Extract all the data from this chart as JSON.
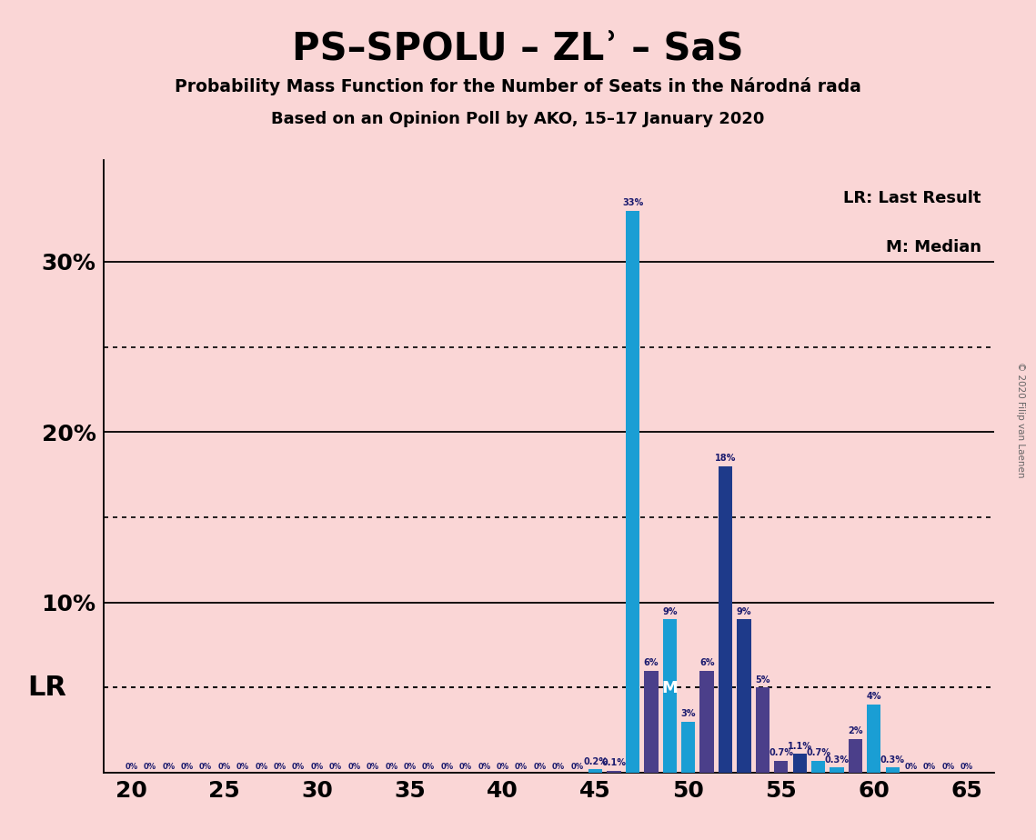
{
  "title": "PS–SPOLU – ZLʾ – SaS",
  "subtitle1": "Probability Mass Function for the Number of Seats in the Národná rada",
  "subtitle2": "Based on an Opinion Poll by AKO, 15–17 January 2020",
  "copyright": "© 2020 Filip van Laenen",
  "lr_label": "LR",
  "lr_last_result": "LR: Last Result",
  "m_median": "M: Median",
  "background_color": "#fad6d6",
  "seats": [
    20,
    21,
    22,
    23,
    24,
    25,
    26,
    27,
    28,
    29,
    30,
    31,
    32,
    33,
    34,
    35,
    36,
    37,
    38,
    39,
    40,
    41,
    42,
    43,
    44,
    45,
    46,
    47,
    48,
    49,
    50,
    51,
    52,
    53,
    54,
    55,
    56,
    57,
    58,
    59,
    60,
    61,
    62,
    63,
    64,
    65
  ],
  "values": [
    0.0,
    0.0,
    0.0,
    0.0,
    0.0,
    0.0,
    0.0,
    0.0,
    0.0,
    0.0,
    0.0,
    0.0,
    0.0,
    0.0,
    0.0,
    0.0,
    0.0,
    0.0,
    0.0,
    0.0,
    0.0,
    0.0,
    0.0,
    0.0,
    0.0,
    0.002,
    0.001,
    0.33,
    0.06,
    0.09,
    0.03,
    0.06,
    0.18,
    0.09,
    0.05,
    0.007,
    0.011,
    0.007,
    0.003,
    0.02,
    0.04,
    0.003,
    0.0,
    0.0,
    0.0,
    0.0
  ],
  "labels": [
    "0%",
    "0%",
    "0%",
    "0%",
    "0%",
    "0%",
    "0%",
    "0%",
    "0%",
    "0%",
    "0%",
    "0%",
    "0%",
    "0%",
    "0%",
    "0%",
    "0%",
    "0%",
    "0%",
    "0%",
    "0%",
    "0%",
    "0%",
    "0%",
    "0%",
    "0.2%",
    "0.1%",
    "33%",
    "6%",
    "9%",
    "3%",
    "6%",
    "18%",
    "9%",
    "5%",
    "0.7%",
    "1.1%",
    "0.7%",
    "0.3%",
    "2%",
    "4%",
    "0.3%",
    "0%",
    "0%",
    "0%",
    "0%"
  ],
  "colors": [
    "#1a9ed4",
    "#1a9ed4",
    "#1a9ed4",
    "#1a9ed4",
    "#1a9ed4",
    "#1a9ed4",
    "#1a9ed4",
    "#1a9ed4",
    "#1a9ed4",
    "#1a9ed4",
    "#1a9ed4",
    "#1a9ed4",
    "#1a9ed4",
    "#1a9ed4",
    "#1a9ed4",
    "#1a9ed4",
    "#1a9ed4",
    "#1a9ed4",
    "#1a9ed4",
    "#1a9ed4",
    "#1a9ed4",
    "#1a9ed4",
    "#1a9ed4",
    "#1a9ed4",
    "#1a9ed4",
    "#1a9ed4",
    "#4b3f8a",
    "#1a9ed4",
    "#4b3f8a",
    "#1a9ed4",
    "#1a9ed4",
    "#4b3f8a",
    "#1e3a8a",
    "#1e3a8a",
    "#4b3f8a",
    "#4b3f8a",
    "#1e3a8a",
    "#1a9ed4",
    "#1a9ed4",
    "#4b3f8a",
    "#1a9ed4",
    "#1a9ed4",
    "#1a9ed4",
    "#1a9ed4",
    "#1a9ed4",
    "#1a9ed4"
  ],
  "lr_seat": 47,
  "median_seat": 49,
  "ylim": [
    0,
    0.36
  ],
  "solid_yticks": [
    0.0,
    0.1,
    0.2,
    0.3
  ],
  "dotted_yticks": [
    0.05,
    0.15,
    0.25
  ],
  "lr_line": 0.05
}
